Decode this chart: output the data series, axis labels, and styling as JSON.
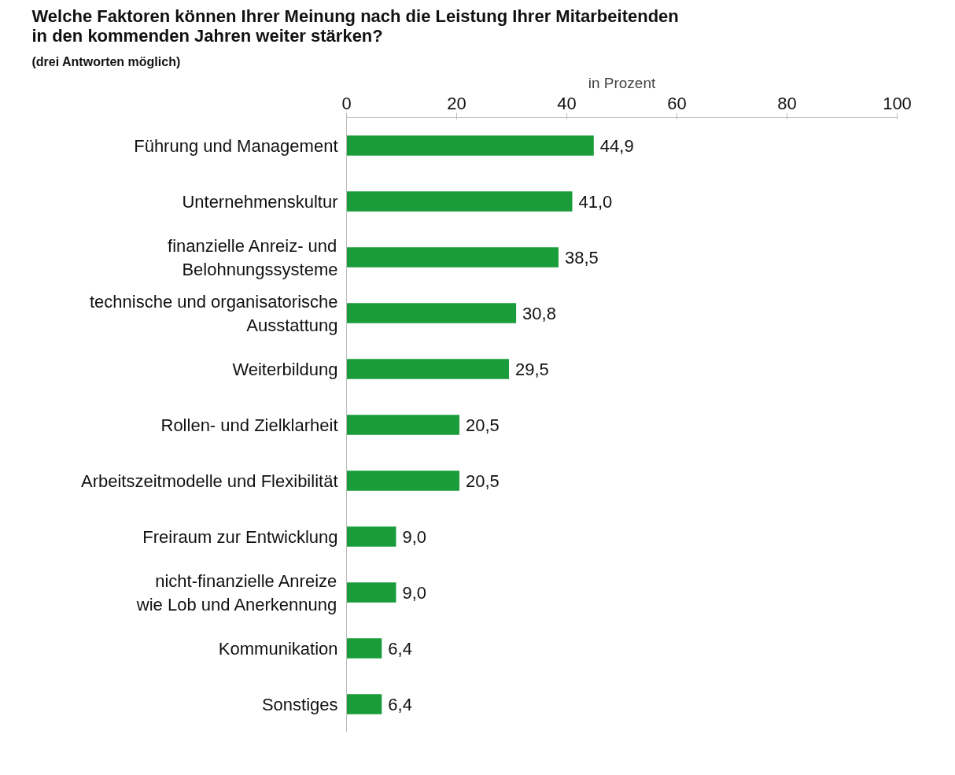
{
  "chart_data": {
    "type": "bar",
    "orientation": "horizontal",
    "title": "Welche Faktoren können Ihrer Meinung nach die Leistung Ihrer Mitarbeitenden\nin den kommenden Jahren weiter stärken?",
    "subtitle": "(drei Antworten möglich)",
    "xlabel": "in Prozent",
    "categories": [
      "Führung und Management",
      "Unternehmenskultur",
      "finanzielle Anreiz- und\nBelohnungssysteme",
      "technische und organisatorische\nAusstattung",
      "Weiterbildung",
      "Rollen- und Zielklarheit",
      "Arbeitszeitmodelle und Flexibilität",
      "Freiraum zur Entwicklung",
      "nicht-finanzielle Anreize\nwie Lob und Anerkennung",
      "Kommunikation",
      "Sonstiges"
    ],
    "values": [
      44.9,
      41.0,
      38.5,
      30.8,
      29.5,
      20.5,
      20.5,
      9.0,
      9.0,
      6.4,
      6.4
    ],
    "value_labels": [
      "44,9",
      "41,0",
      "38,5",
      "30,8",
      "29,5",
      "20,5",
      "20,5",
      "9,0",
      "9,0",
      "6,4",
      "6,4"
    ],
    "color": "#1a9c3a",
    "xlim": [
      0,
      100
    ],
    "xticks": [
      0,
      20,
      40,
      60,
      80,
      100
    ],
    "grid": false
  }
}
